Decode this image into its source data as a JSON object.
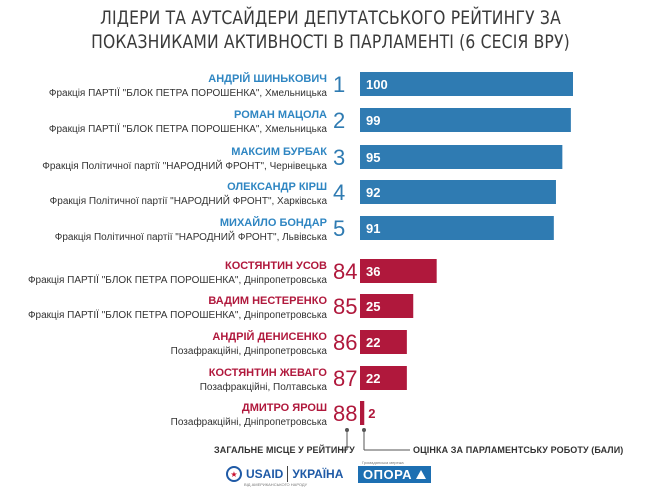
{
  "title": {
    "line1": "ЛІДЕРИ ТА АУТСАЙДЕРИ ДЕПУТАТСЬКОГО РЕЙТИНГУ ЗА",
    "line2": "ПОКАЗНИКАМИ АКТИВНОСТІ В ПАРЛАМЕНТІ (6 СЕСІЯ ВРУ)"
  },
  "colors": {
    "leader": "#2f7bb2",
    "outsider": "#b0183c",
    "leader_name": "#2f86c2",
    "outsider_name": "#b0183c"
  },
  "chart_data": {
    "type": "bar",
    "orientation": "horizontal",
    "xlim": [
      0,
      100
    ],
    "rows": [
      {
        "name": "АНДРІЙ ШИНЬКОВИЧ",
        "party": "Фракція ПАРТІЇ \"БЛОК ПЕТРА ПОРОШЕНКА\", Хмельницька",
        "rank": "1",
        "value": 100,
        "group": "leader"
      },
      {
        "name": "РОМАН МАЦОЛА",
        "party": "Фракція ПАРТІЇ \"БЛОК ПЕТРА ПОРОШЕНКА\", Хмельницька",
        "rank": "2",
        "value": 99,
        "group": "leader"
      },
      {
        "name": "МАКСИМ БУРБАК",
        "party": "Фракція Політичної партії \"НАРОДНИЙ ФРОНТ\", Чернівецька",
        "rank": "3",
        "value": 95,
        "group": "leader"
      },
      {
        "name": "ОЛЕКСАНДР КІРШ",
        "party": "Фракція Політичної партії \"НАРОДНИЙ ФРОНТ\", Харківська",
        "rank": "4",
        "value": 92,
        "group": "leader"
      },
      {
        "name": "МИХАЙЛО БОНДАР",
        "party": "Фракція Політичної партії \"НАРОДНИЙ ФРОНТ\", Львівська",
        "rank": "5",
        "value": 91,
        "group": "leader"
      },
      {
        "name": "КОСТЯНТИН УСОВ",
        "party": "Фракція ПАРТІЇ \"БЛОК ПЕТРА ПОРОШЕНКА\", Дніпропетровська",
        "rank": "84",
        "value": 36,
        "group": "outsider"
      },
      {
        "name": "ВАДИМ НЕСТЕРЕНКО",
        "party": "Фракція ПАРТІЇ \"БЛОК ПЕТРА ПОРОШЕНКА\", Дніпропетровська",
        "rank": "85",
        "value": 25,
        "group": "outsider"
      },
      {
        "name": "АНДРІЙ ДЕНИСЕНКО",
        "party": "Позафракційні, Дніпропетровська",
        "rank": "86",
        "value": 22,
        "group": "outsider"
      },
      {
        "name": "КОСТЯНТИН ЖЕВАГО",
        "party": "Позафракційні, Полтавська",
        "rank": "87",
        "value": 22,
        "group": "outsider"
      },
      {
        "name": "ДМИТРО ЯРОШ",
        "party": "Позафракційні, Дніпропетровська",
        "rank": "88",
        "value": 2,
        "group": "outsider"
      }
    ]
  },
  "legend": {
    "rank_label": "ЗАГАЛЬНЕ МІСЦЕ У РЕЙТИНГУ",
    "score_label": "ОЦІНКА ЗА ПАРЛАМЕНТСЬКУ РОБОТУ (БАЛИ)"
  },
  "footer": {
    "usaid": "USAID",
    "ukraina": "УКРАЇНА",
    "opora": "ОПОРА",
    "usaid_sub": "ВІД АМЕРИКАНСЬКОГО НАРОДУ",
    "opora_sub": "Громадянська мережа"
  }
}
